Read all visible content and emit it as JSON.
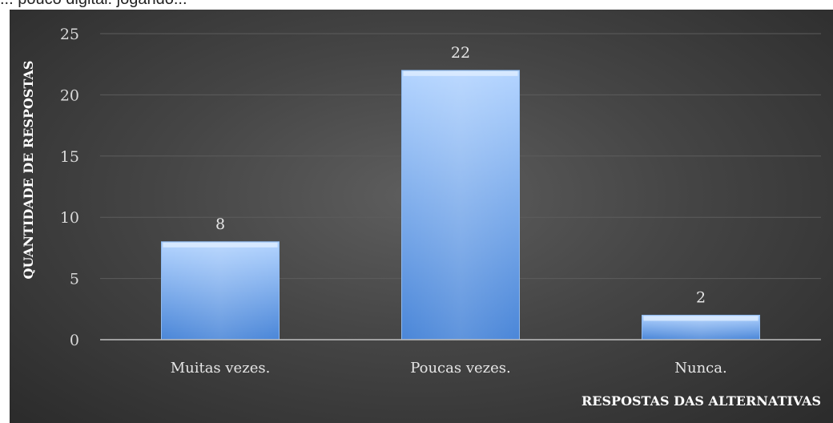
{
  "page": {
    "top_text": "... pouco digital: jogando..."
  },
  "chart_data": {
    "type": "bar",
    "categories": [
      "Muitas vezes.",
      "Poucas vezes.",
      "Nunca."
    ],
    "values": [
      8,
      22,
      2
    ],
    "data_labels": [
      "8",
      "22",
      "2"
    ],
    "xlabel": "RESPOSTAS DAS ALTERNATIVAS",
    "ylabel": "QUANTIDADE DE RESPOSTAS",
    "ylim": [
      0,
      25
    ],
    "yticks": [
      0,
      5,
      10,
      15,
      20,
      25
    ],
    "grid": true,
    "legend": "none",
    "colors": {
      "background": "#454545",
      "bar_top": "#b9d8ff",
      "bar_bottom": "#4a86d8",
      "grid": "#5c5c5c",
      "axis": "#bfbfbf",
      "text": "#d9d9d9"
    }
  }
}
